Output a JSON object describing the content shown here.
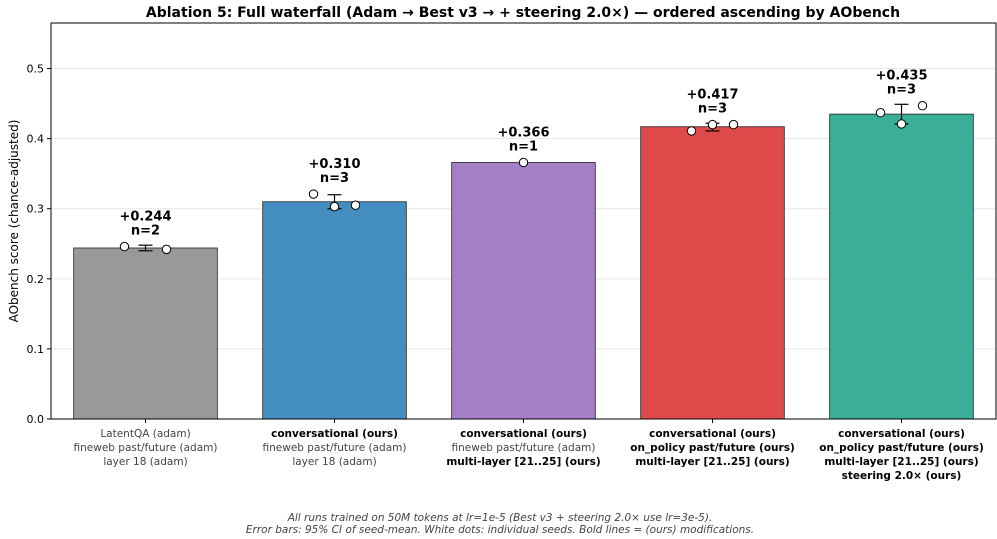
{
  "chart_data": {
    "type": "bar",
    "title": "Ablation 5: Full waterfall (Adam → Best v3 → + steering 2.0×) — ordered ascending by AObench",
    "xlabel": "",
    "ylabel": "AObench score (chance-adjusted)",
    "ylim": [
      0,
      0.565
    ],
    "yticks": [
      0.0,
      0.1,
      0.2,
      0.3,
      0.4,
      0.5
    ],
    "ytick_labels": [
      "0.0",
      "0.1",
      "0.2",
      "0.3",
      "0.4",
      "0.5"
    ],
    "grid": true,
    "categories": [
      {
        "lines": [
          {
            "text": "LatentQA (adam)",
            "bold": false
          },
          {
            "text": "fineweb past/future (adam)",
            "bold": false
          },
          {
            "text": "layer 18 (adam)",
            "bold": false
          }
        ],
        "value": 0.244,
        "n": 2,
        "value_label": "+0.244",
        "n_label": "n=2",
        "ci": [
          0.24,
          0.248
        ],
        "seeds": [
          0.246,
          0.242
        ],
        "color": "#999999"
      },
      {
        "lines": [
          {
            "text": "conversational (ours)",
            "bold": true
          },
          {
            "text": "fineweb past/future (adam)",
            "bold": false
          },
          {
            "text": "layer 18 (adam)",
            "bold": false
          }
        ],
        "value": 0.31,
        "n": 3,
        "value_label": "+0.310",
        "n_label": "n=3",
        "ci": [
          0.3,
          0.32
        ],
        "seeds": [
          0.321,
          0.303,
          0.305
        ],
        "color": "#438dc1"
      },
      {
        "lines": [
          {
            "text": "conversational (ours)",
            "bold": true
          },
          {
            "text": "fineweb past/future (adam)",
            "bold": false
          },
          {
            "text": "multi-layer [21..25] (ours)",
            "bold": true
          }
        ],
        "value": 0.366,
        "n": 1,
        "value_label": "+0.366",
        "n_label": "n=1",
        "ci": null,
        "seeds": [
          0.366
        ],
        "color": "#a47ec7"
      },
      {
        "lines": [
          {
            "text": "conversational (ours)",
            "bold": true
          },
          {
            "text": "on_policy past/future (ours)",
            "bold": true
          },
          {
            "text": "multi-layer [21..25] (ours)",
            "bold": true
          }
        ],
        "value": 0.417,
        "n": 3,
        "value_label": "+0.417",
        "n_label": "n=3",
        "ci": [
          0.411,
          0.422
        ],
        "seeds": [
          0.411,
          0.42,
          0.42
        ],
        "color": "#de4949"
      },
      {
        "lines": [
          {
            "text": "conversational (ours)",
            "bold": true
          },
          {
            "text": "on_policy past/future (ours)",
            "bold": true
          },
          {
            "text": "multi-layer [21..25] (ours)",
            "bold": true
          },
          {
            "text": "steering 2.0× (ours)",
            "bold": true
          }
        ],
        "value": 0.435,
        "n": 3,
        "value_label": "+0.435",
        "n_label": "n=3",
        "ci": [
          0.421,
          0.449
        ],
        "seeds": [
          0.437,
          0.421,
          0.447
        ],
        "color": "#3aae97"
      }
    ],
    "footnotes": [
      "All runs trained on 50M tokens at lr=1e-5 (Best v3 + steering 2.0× use lr=3e-5).",
      "Error bars: 95% CI of seed-mean. White dots: individual seeds. Bold lines = (ours) modifications."
    ]
  }
}
